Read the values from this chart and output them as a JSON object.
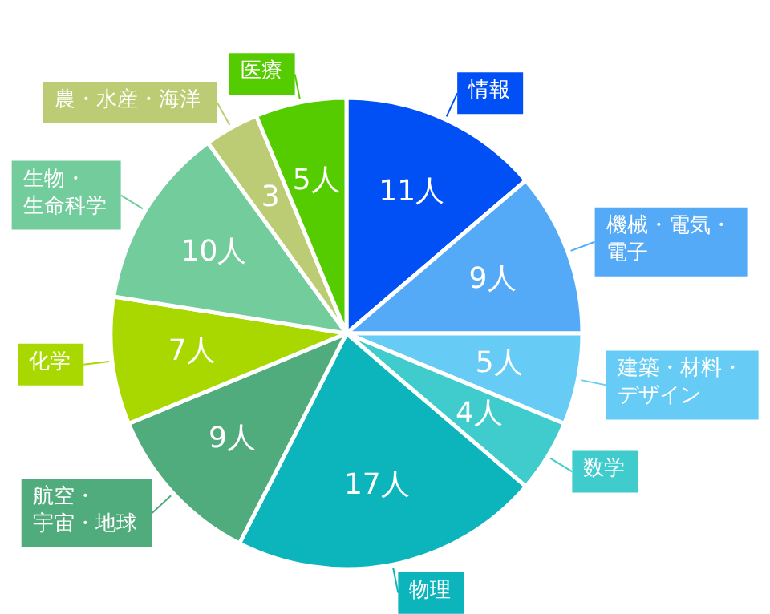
{
  "chart_data": {
    "type": "pie",
    "categories": [
      "情報",
      "機械・電気・電子",
      "建築・材料・デザイン",
      "数学",
      "物理",
      "航空・宇宙・地球",
      "化学",
      "生物・生命科学",
      "農・水産・海洋",
      "医療"
    ],
    "values": [
      11,
      9,
      5,
      4,
      17,
      9,
      7,
      10,
      3,
      5
    ],
    "value_labels": [
      "11人",
      "9人",
      "5人",
      "4人",
      "17人",
      "9人",
      "7人",
      "10人",
      "3",
      "5人"
    ],
    "colors": [
      "#0050f5",
      "#55aaf8",
      "#66ccf5",
      "#40cccc",
      "#0bb5bb",
      "#50ac7c",
      "#a8d800",
      "#72cc9c",
      "#bccc74",
      "#55cc00"
    ]
  }
}
